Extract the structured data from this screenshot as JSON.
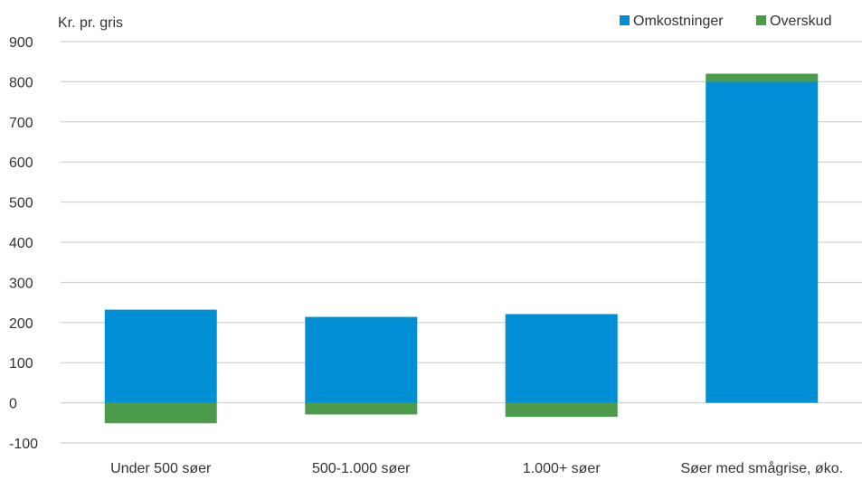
{
  "chart_data": {
    "type": "bar",
    "stacked": true,
    "ylabel": "Kr. pr. gris",
    "ylim": [
      -100,
      900
    ],
    "yticks": [
      900,
      800,
      700,
      600,
      500,
      400,
      300,
      200,
      100,
      0,
      -100
    ],
    "grid": true,
    "legend_position": "top-right",
    "categories": [
      "Under 500 søer",
      "500-1.000 søer",
      "1.000+ søer",
      "Søer med smågrise, øko."
    ],
    "series": [
      {
        "name": "Omkostninger",
        "color": "#008fd5",
        "values": [
          232,
          214,
          221,
          800
        ]
      },
      {
        "name": "Overskud",
        "color": "#4c9a4c",
        "values": [
          -51,
          -29,
          -35,
          20
        ]
      }
    ]
  }
}
